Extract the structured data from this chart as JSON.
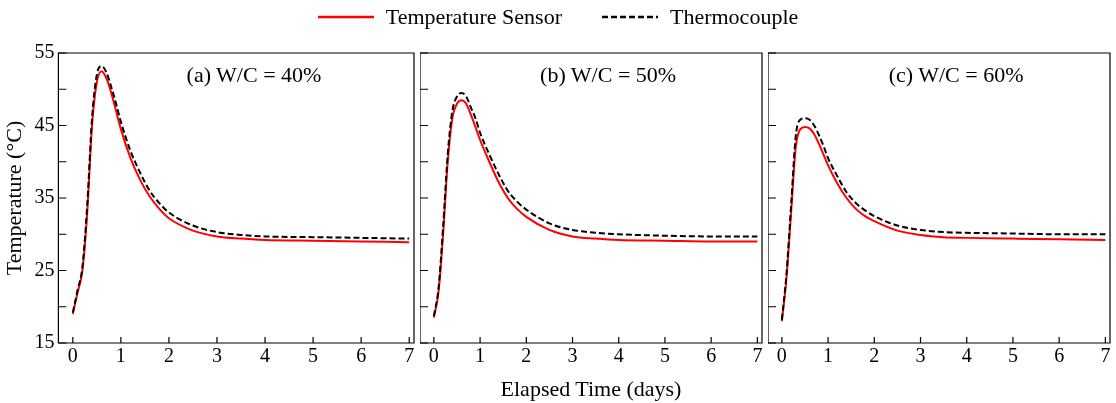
{
  "chart_data": [
    {
      "type": "line",
      "ylabel": "Temperature (°C)",
      "legend": "top",
      "annotations": [
        "(a) W/C = 40%"
      ],
      "x": [
        0,
        0.1,
        0.2,
        0.3,
        0.4,
        0.5,
        0.6,
        0.7,
        0.8,
        0.9,
        1,
        1.2,
        1.4,
        1.6,
        1.8,
        2,
        2.5,
        3,
        3.5,
        4,
        5,
        6,
        7
      ],
      "xlim": [
        -0.3,
        7.1
      ],
      "xticks": [
        0,
        1,
        2,
        3,
        4,
        5,
        6,
        7
      ],
      "ylim": [
        15,
        55
      ],
      "yticks": [
        15,
        {
          "value": 20,
          "label": null
        },
        25,
        {
          "value": 30,
          "label": null
        },
        35,
        {
          "value": 40,
          "label": null
        },
        45,
        {
          "value": 50,
          "label": null
        },
        55
      ],
      "grid": false,
      "marker": "none",
      "series": [
        {
          "name": "Temperature Sensor",
          "color": "#ff0000",
          "line_style": "solid",
          "values": [
            19,
            22,
            25,
            33,
            45,
            51,
            52.5,
            51.5,
            49.5,
            47,
            44.5,
            40.5,
            37.5,
            35.2,
            33.5,
            32.2,
            30.5,
            29.7,
            29.4,
            29.2,
            29.1,
            29,
            28.9
          ]
        },
        {
          "name": "Thermocouple",
          "color": "#000000",
          "line_style": "dashed",
          "values": [
            19.2,
            22.3,
            25.5,
            34,
            46,
            52,
            53.2,
            52.3,
            50.3,
            48,
            45.5,
            41.5,
            38.5,
            36,
            34.3,
            33,
            31.2,
            30.3,
            29.9,
            29.7,
            29.6,
            29.5,
            29.4
          ]
        }
      ]
    },
    {
      "type": "line",
      "xlabel": "Elapsed Time (days)",
      "annotations": [
        "(b) W/C = 50%"
      ],
      "x": [
        0,
        0.1,
        0.2,
        0.3,
        0.4,
        0.5,
        0.6,
        0.7,
        0.8,
        0.9,
        1,
        1.2,
        1.4,
        1.6,
        1.8,
        2,
        2.5,
        3,
        3.5,
        4,
        5,
        6,
        7
      ],
      "xlim": [
        -0.3,
        7.1
      ],
      "xticks": [
        0,
        1,
        2,
        3,
        4,
        5,
        6,
        7
      ],
      "ylim": [
        15,
        55
      ],
      "yticks": [
        15,
        {
          "value": 20,
          "label": null
        },
        25,
        {
          "value": 30,
          "label": null
        },
        35,
        {
          "value": 40,
          "label": null
        },
        45,
        {
          "value": 50,
          "label": null
        },
        55
      ],
      "grid": false,
      "marker": "none",
      "tick_labels": "x",
      "series": [
        {
          "color": "#ff0000",
          "line_style": "solid",
          "values": [
            18.5,
            22,
            30,
            40,
            46,
            48,
            48.5,
            48,
            46.5,
            44.8,
            43,
            40,
            37.2,
            35,
            33.5,
            32.4,
            30.6,
            29.7,
            29.4,
            29.2,
            29.1,
            29,
            29
          ]
        },
        {
          "color": "#000000",
          "line_style": "dashed",
          "values": [
            18.7,
            22.5,
            31,
            41,
            47,
            49,
            49.5,
            49,
            47.5,
            46,
            44,
            41,
            38.3,
            36,
            34.5,
            33.4,
            31.5,
            30.6,
            30.2,
            30,
            29.8,
            29.7,
            29.7
          ]
        }
      ]
    },
    {
      "type": "line",
      "annotations": [
        "(c) W/C = 60%"
      ],
      "x": [
        0,
        0.1,
        0.2,
        0.3,
        0.4,
        0.5,
        0.6,
        0.7,
        0.8,
        0.9,
        1,
        1.2,
        1.4,
        1.6,
        1.8,
        2,
        2.5,
        3,
        3.5,
        4,
        5,
        6,
        7
      ],
      "xlim": [
        -0.3,
        7.1
      ],
      "xticks": [
        0,
        1,
        2,
        3,
        4,
        5,
        6,
        7
      ],
      "ylim": [
        15,
        55
      ],
      "yticks": [
        15,
        {
          "value": 20,
          "label": null
        },
        25,
        {
          "value": 30,
          "label": null
        },
        35,
        {
          "value": 40,
          "label": null
        },
        45,
        {
          "value": 50,
          "label": null
        },
        55
      ],
      "grid": false,
      "marker": "none",
      "tick_labels": "x",
      "series": [
        {
          "color": "#ff0000",
          "line_style": "solid",
          "values": [
            18,
            24,
            33,
            42,
            44.5,
            44.8,
            44.6,
            43.8,
            42.5,
            41,
            39.5,
            37,
            35,
            33.5,
            32.5,
            31.8,
            30.5,
            29.9,
            29.6,
            29.5,
            29.4,
            29.3,
            29.2
          ]
        },
        {
          "color": "#000000",
          "line_style": "dashed",
          "values": [
            18.2,
            24.5,
            34,
            43.5,
            45.8,
            46,
            45.8,
            45,
            43.7,
            42.2,
            40.5,
            38,
            35.8,
            34.3,
            33.3,
            32.5,
            31.2,
            30.6,
            30.3,
            30.2,
            30.1,
            30,
            30
          ]
        }
      ]
    }
  ]
}
